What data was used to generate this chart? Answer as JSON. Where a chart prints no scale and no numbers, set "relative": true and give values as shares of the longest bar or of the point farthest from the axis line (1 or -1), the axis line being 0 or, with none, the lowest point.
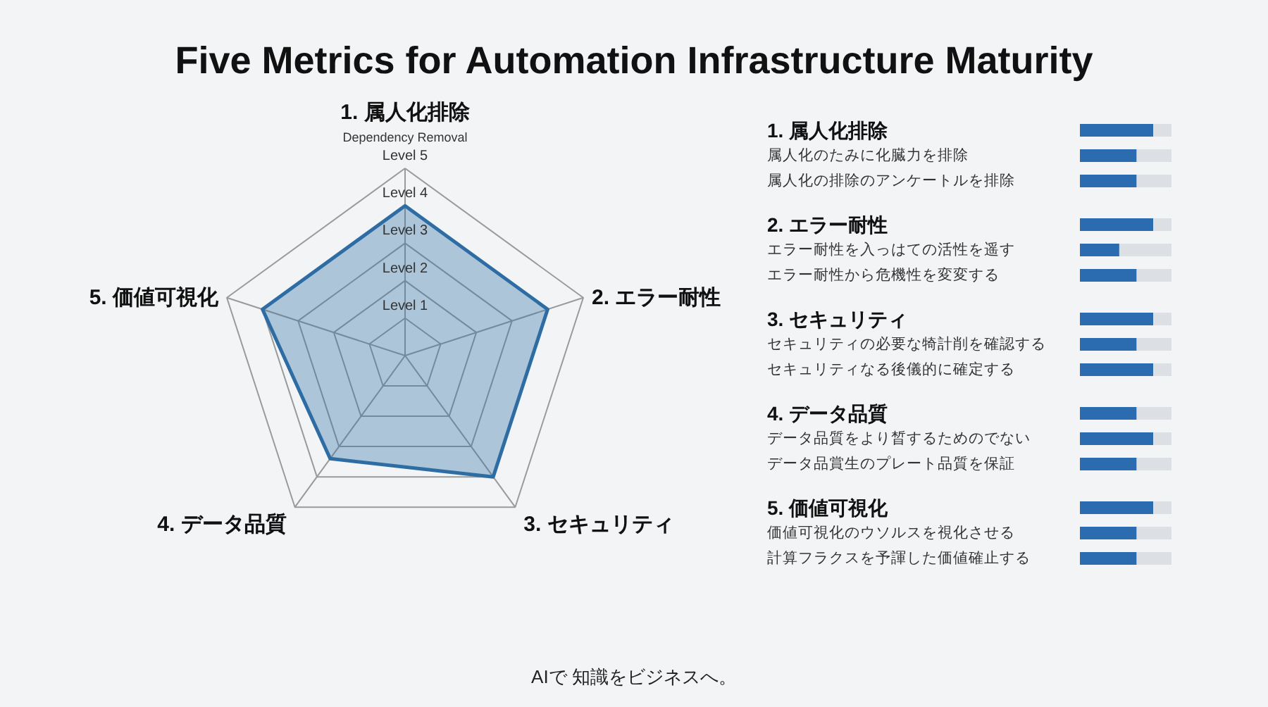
{
  "chart_data": [
    {
      "type": "radar",
      "title": "Five Metrics for Automation Infrastructure Maturity",
      "categories": [
        "1. 属人化排除",
        "2. エラー耐性",
        "3. セキュリティ",
        "4. データ品質",
        "5. 価値可視化"
      ],
      "series": [
        {
          "color": "#2e6da4",
          "values": [
            4.0,
            4.0,
            4.0,
            3.4,
            4.0
          ]
        }
      ],
      "ylim": [
        0,
        5
      ],
      "yticks": [
        {
          "value": 1,
          "label": "Level 1"
        },
        {
          "value": 2,
          "label": "Level 2"
        },
        {
          "value": 3,
          "label": "Level 3"
        },
        {
          "value": 4,
          "label": "Level 4"
        },
        {
          "value": 5,
          "label": "Level 5"
        }
      ],
      "grid": true,
      "annotations": [
        "Dependency Removal",
        "AIで 知識をビジネスへ。"
      ]
    },
    {
      "type": "bar",
      "orientation": "horizontal",
      "stacked": true,
      "relative": true,
      "categories": [
        "1. 属人化排除",
        "属人化のたみに化臓力を排除",
        "属人化の排除のアンケートルを排除",
        "2. エラー耐性",
        "エラー耐性を入っはての活性を遥す",
        "エラー耐性から危機性を変変する",
        "3. セキュリティ",
        "セキュリティの必要な犄計削を確認する",
        "セキュリティなる後儀的に確定する",
        "4. データ品質",
        "データ品質をより晳するためのでない",
        "データ品賞生のプレート品質を保証",
        "5. 価値可視化",
        "価値可視化のウソルスを視化させる",
        "計算フラクスを予諢した価値確止する"
      ],
      "series": [
        {
          "color": "#2b6cb0",
          "values": [
            0.8,
            0.62,
            0.62,
            0.8,
            0.43,
            0.62,
            0.8,
            0.62,
            0.8,
            0.62,
            0.8,
            0.62,
            0.8,
            0.62,
            0.62
          ]
        },
        {
          "color": "#dcdfe3",
          "values": [
            0.2,
            0.38,
            0.38,
            0.2,
            0.57,
            0.38,
            0.2,
            0.38,
            0.2,
            0.38,
            0.2,
            0.38,
            0.2,
            0.38,
            0.38
          ]
        }
      ]
    }
  ]
}
